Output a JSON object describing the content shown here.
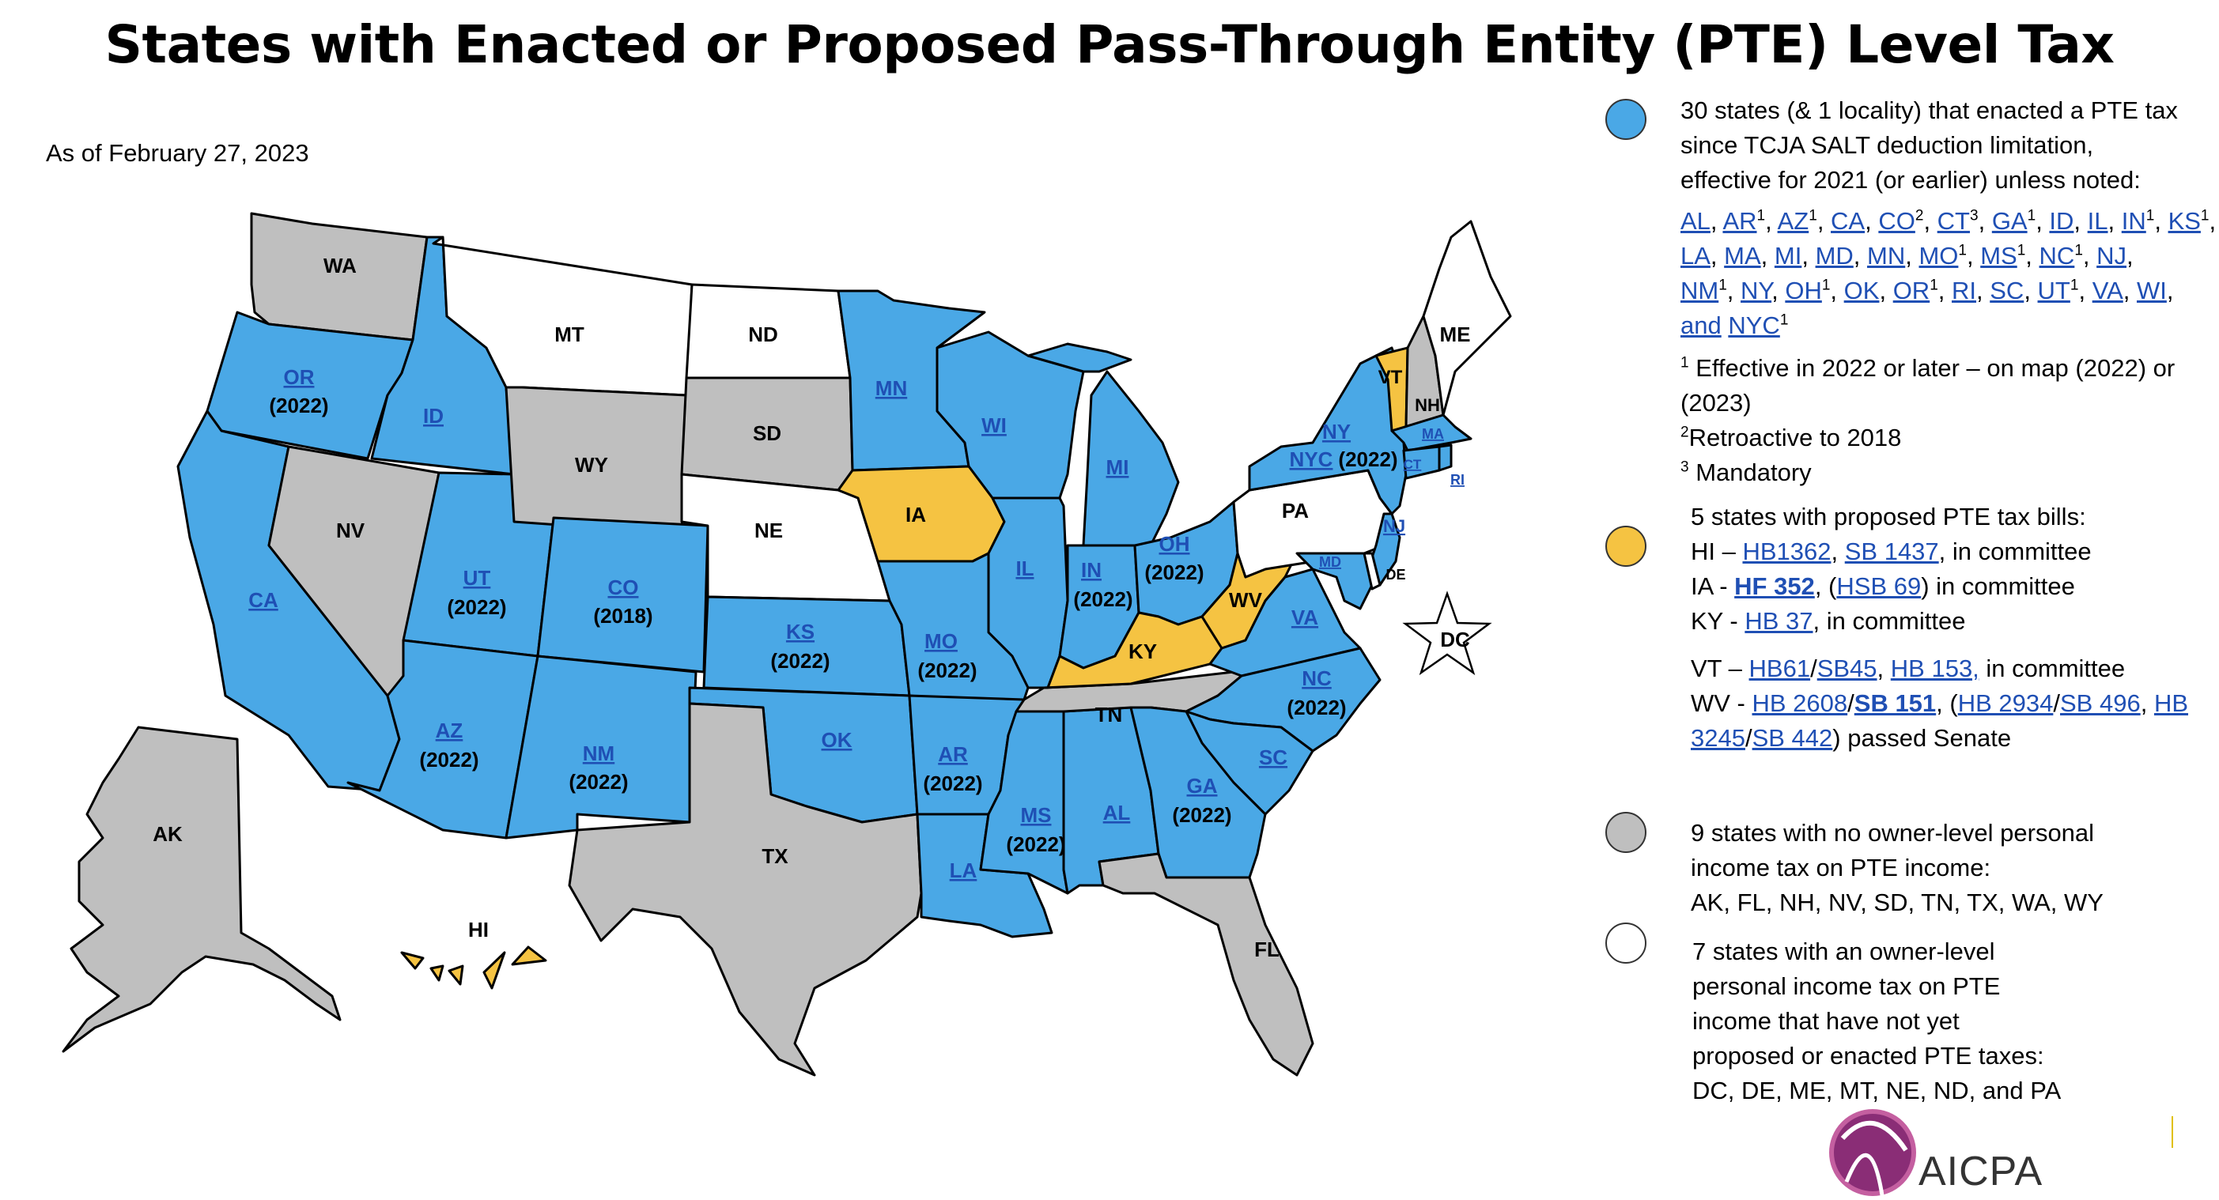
{
  "title": "States with Enacted or Proposed Pass-Through Entity (PTE) Level Tax",
  "as_of": "As of February 27, 2023",
  "colors": {
    "enacted": "#4aa8e6",
    "proposed": "#f5c342",
    "no_tax": "#bfbfbf",
    "not_yet": "#ffffff",
    "link": "#1f4fb4"
  },
  "states": {
    "WA": "WA",
    "OR": "OR",
    "OR_y": "(2022)",
    "ID": "ID",
    "MT": "MT",
    "ND": "ND",
    "MN": "MN",
    "WI": "WI",
    "MI": "MI",
    "WY": "WY",
    "SD": "SD",
    "NE": "NE",
    "IA": "IA",
    "IL": "IL",
    "IN": "IN",
    "IN_y": "(2022)",
    "OH": "OH",
    "OH_y": "(2022)",
    "NV": "NV",
    "UT": "UT",
    "UT_y": "(2022)",
    "CO": "CO",
    "CO_y": "(2018)",
    "KS": "KS",
    "KS_y": "(2022)",
    "MO": "MO",
    "MO_y": "(2022)",
    "KY": "KY",
    "WV": "WV",
    "VA": "VA",
    "PA": "PA",
    "NY": "NY",
    "NYC": "NYC",
    "NYC_y": "(2022)",
    "NJ": "NJ",
    "MD": "MD",
    "DE": "DE",
    "CA": "CA",
    "AZ": "AZ",
    "AZ_y": "(2022)",
    "NM": "NM",
    "NM_y": "(2022)",
    "OK": "OK",
    "AR": "AR",
    "AR_y": "(2022)",
    "TN": "TN",
    "NC": "NC",
    "NC_y": "(2022)",
    "SC": "SC",
    "TX": "TX",
    "LA": "LA",
    "MS": "MS",
    "MS_y": "(2022)",
    "AL": "AL",
    "GA": "GA",
    "GA_y": "(2022)",
    "FL": "FL",
    "AK": "AK",
    "HI": "HI",
    "VT": "VT",
    "NH": "NH",
    "ME": "ME",
    "MA": "MA",
    "CT": "CT",
    "RI": "RI",
    "DC": "DC"
  },
  "legend": {
    "enacted": {
      "text1": "30 states (& 1 locality) that enacted a PTE tax",
      "text2": "since TCJA SALT deduction limitation,",
      "text3": "effective for 2021 (or earlier) unless noted:",
      "line1": [
        "AL",
        "AR",
        "AZ",
        "CA",
        "CO",
        "CT",
        "GA",
        "ID",
        "IL",
        "IN",
        "KS"
      ],
      "line2": [
        "LA",
        "MA",
        "MI",
        "MD",
        "MN",
        "MO",
        "MS",
        "NC",
        "NJ"
      ],
      "line3": [
        "NM",
        "NY",
        "OH",
        "OK",
        "OR",
        "RI",
        "SC",
        "UT",
        "VA",
        "WI"
      ],
      "and": "and",
      "nyc": "NYC",
      "fn1": "Effective in 2022 or later – on map (2022) or",
      "fn1b": "(2023)",
      "fn2": "Retroactive to 2018",
      "fn3": "Mandatory"
    },
    "proposed": {
      "head": "5 states with proposed PTE tax bills:",
      "hi_pre": "HI – ",
      "hi_b1": "HB1362",
      "hi_b2": "SB 1437",
      "hi_post": ", in committee",
      "ia_pre": "IA - ",
      "ia_b1": "HF 352",
      "ia_b2": "HSB 69",
      "ia_post": " in committee",
      "ky_pre": "KY - ",
      "ky_b1": "HB 37",
      "ky_post": ", in committee",
      "vt_pre": "VT – ",
      "vt_b1": "HB61",
      "vt_b2": "SB45",
      "vt_b3": "HB 153,",
      "vt_post": " in committee",
      "wv_pre": "WV - ",
      "wv_b1": "HB 2608",
      "wv_b2": "SB 151",
      "wv_b3": "HB 2934",
      "wv_b4": "SB 496",
      "wv_b5": "HB",
      "wv_b6": "3245",
      "wv_b7": "SB 442",
      "wv_post": ") passed Senate"
    },
    "no_tax": {
      "l1": "9 states with no owner-level personal",
      "l2": "income tax on PTE income:",
      "l3": "AK, FL, NH, NV, SD, TN, TX, WA, WY"
    },
    "not_yet": {
      "l1": "7 states with an owner-level",
      "l2": "personal income tax on PTE",
      "l3": "income that have not yet",
      "l4": "proposed or enacted PTE taxes:",
      "l5": "DC, DE,  ME, MT, NE, ND, and PA"
    }
  },
  "logo": {
    "text": "AICPA",
    "icon": "aicpa-globe-icon"
  }
}
